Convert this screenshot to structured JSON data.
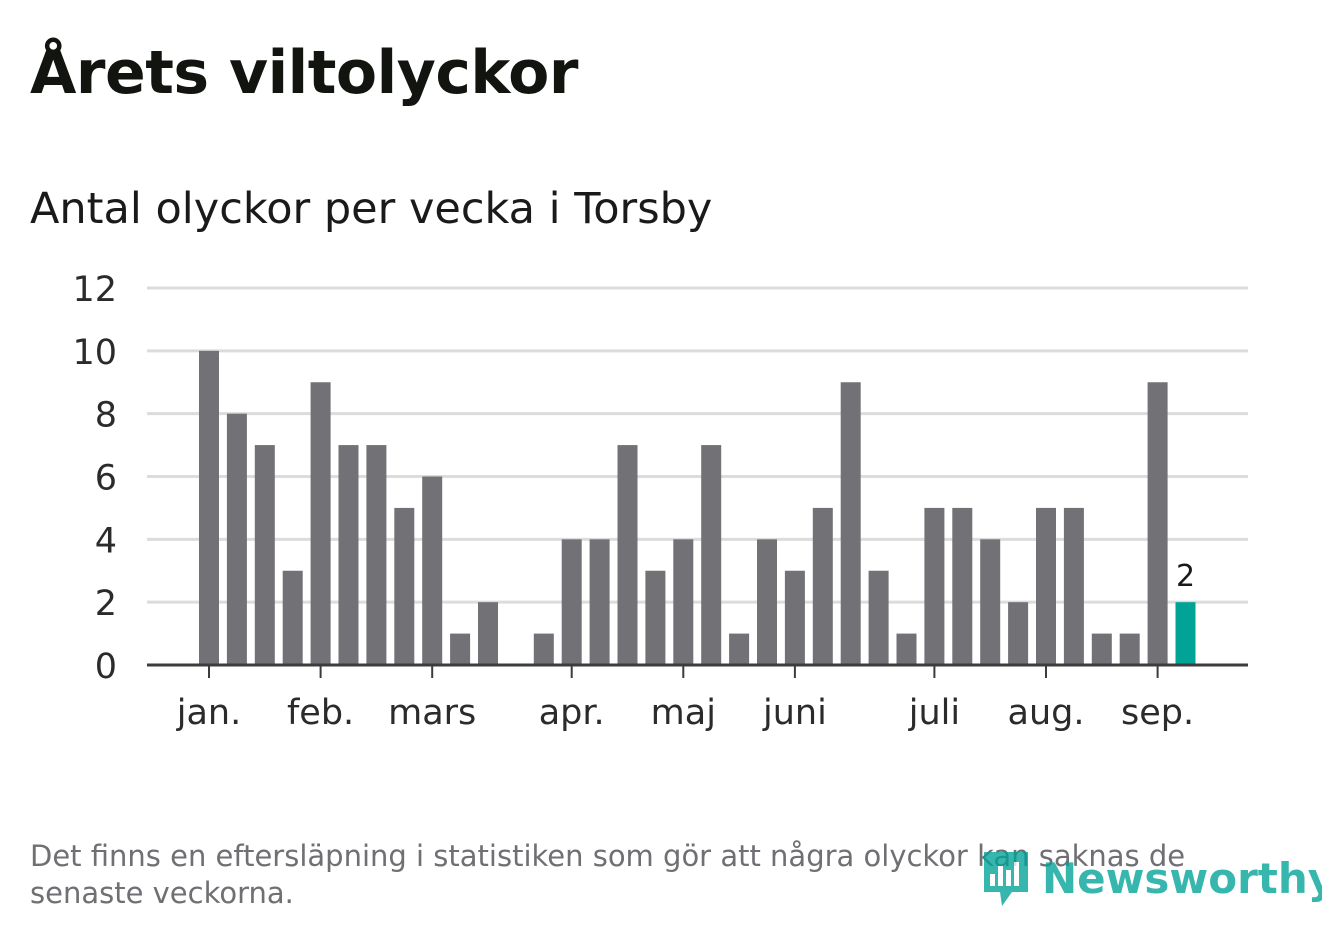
{
  "title": "Årets viltolyckor",
  "subtitle": "Antal olyckor per vecka i Torsby",
  "footnote": "Det finns en eftersläpning i statistiken som gör att några olyckor kan saknas de senaste veckorna.",
  "logo_text": "Newsworthy",
  "colors": {
    "bar": "#717176",
    "highlight": "#00a396",
    "grid": "#dcdcdc",
    "axis": "#3c3c3c",
    "tick_text": "#2b2b2b"
  },
  "chart_data": {
    "type": "bar",
    "ylim": [
      0,
      12
    ],
    "yticks": [
      "0",
      "2",
      "4",
      "6",
      "8",
      "10",
      "12"
    ],
    "values": [
      10,
      8,
      7,
      3,
      9,
      7,
      7,
      5,
      6,
      1,
      2,
      0,
      1,
      4,
      4,
      7,
      3,
      4,
      7,
      1,
      4,
      3,
      5,
      9,
      3,
      1,
      5,
      5,
      4,
      2,
      5,
      5,
      1,
      1,
      9,
      2
    ],
    "highlight_index": 35,
    "highlight_label": "2",
    "month_labels": [
      {
        "label": "jan.",
        "week": 0
      },
      {
        "label": "feb.",
        "week": 4
      },
      {
        "label": "mars",
        "week": 8
      },
      {
        "label": "apr.",
        "week": 13
      },
      {
        "label": "maj",
        "week": 17
      },
      {
        "label": "juni",
        "week": 21
      },
      {
        "label": "juli",
        "week": 26
      },
      {
        "label": "aug.",
        "week": 30
      },
      {
        "label": "sep.",
        "week": 34
      }
    ],
    "grid": true,
    "legend": "none"
  }
}
